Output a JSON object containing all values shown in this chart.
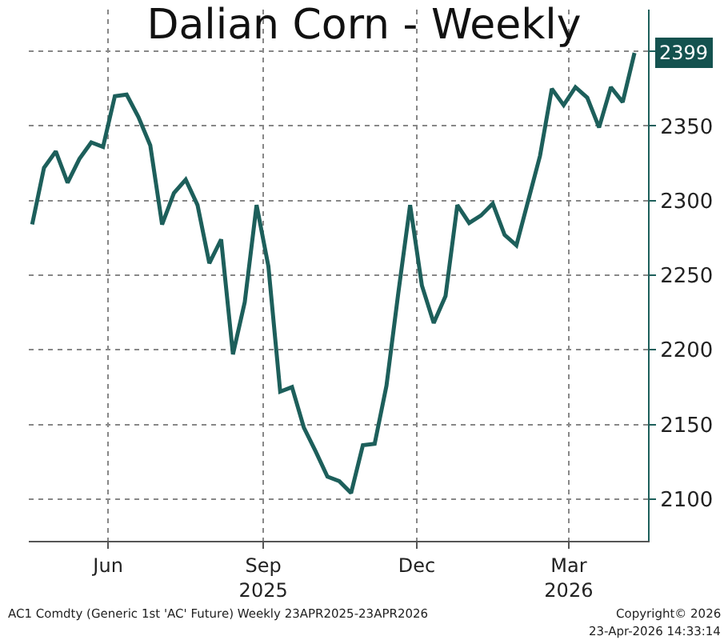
{
  "chart_data": {
    "type": "line",
    "title": "Dalian Corn - Weekly",
    "x": [
      "2025-05-01",
      "2025-05-08",
      "2025-05-15",
      "2025-05-22",
      "2025-05-29",
      "2025-06-05",
      "2025-06-12",
      "2025-06-19",
      "2025-06-26",
      "2025-07-03",
      "2025-07-10",
      "2025-07-17",
      "2025-07-24",
      "2025-07-31",
      "2025-08-07",
      "2025-08-14",
      "2025-08-21",
      "2025-08-28",
      "2025-09-04",
      "2025-09-11",
      "2025-09-18",
      "2025-09-25",
      "2025-10-02",
      "2025-10-09",
      "2025-10-16",
      "2025-10-23",
      "2025-10-30",
      "2025-11-06",
      "2025-11-13",
      "2025-11-20",
      "2025-11-27",
      "2025-12-04",
      "2025-12-11",
      "2025-12-18",
      "2025-12-25",
      "2026-01-01",
      "2026-01-08",
      "2026-01-15",
      "2026-01-22",
      "2026-01-29",
      "2026-02-05",
      "2026-02-12",
      "2026-02-19",
      "2026-02-26",
      "2026-03-05",
      "2026-03-12",
      "2026-03-19",
      "2026-03-26",
      "2026-04-02",
      "2026-04-09",
      "2026-04-16",
      "2026-04-23"
    ],
    "series": [
      {
        "color": "#1d5f5b",
        "values": [
          2284,
          2322,
          2333,
          2312,
          2328,
          2339,
          2336,
          2370,
          2371,
          2356,
          2337,
          2284,
          2305,
          2314,
          2297,
          2258,
          2274,
          2197,
          2232,
          2297,
          2256,
          2172,
          2175,
          2148,
          2132,
          2115,
          2112,
          2104,
          2136,
          2137,
          2176,
          2238,
          2297,
          2243,
          2218,
          2236,
          2297,
          2285,
          2290,
          2298,
          2277,
          2270,
          2300,
          2330,
          2375,
          2364,
          2376,
          2369,
          2349,
          2376,
          2366,
          2399
        ]
      }
    ],
    "xlim": [
      "2025-04-29",
      "2026-05-01"
    ],
    "xticks": [
      {
        "value": "2025-06-15",
        "label": "Jun"
      },
      {
        "value": "2025-09-15",
        "label": "Sep\n2025"
      },
      {
        "value": "2025-12-15",
        "label": "Dec"
      },
      {
        "value": "2026-03-15",
        "label": "Mar\n2026"
      }
    ],
    "ylim": [
      2072,
      2428
    ],
    "yticks": [
      2100,
      2150,
      2200,
      2250,
      2300,
      2350,
      {
        "value": 2400,
        "label": null
      }
    ],
    "grid": true,
    "marker": "none",
    "line_style": "solid",
    "annotations": [
      "2399",
      "AC1 Comdty (Generic 1st 'AC' Future) Weekly 23APR2025-23APR2026",
      "Copyright© 2026",
      "23-Apr-2026 14:33:14"
    ]
  }
}
